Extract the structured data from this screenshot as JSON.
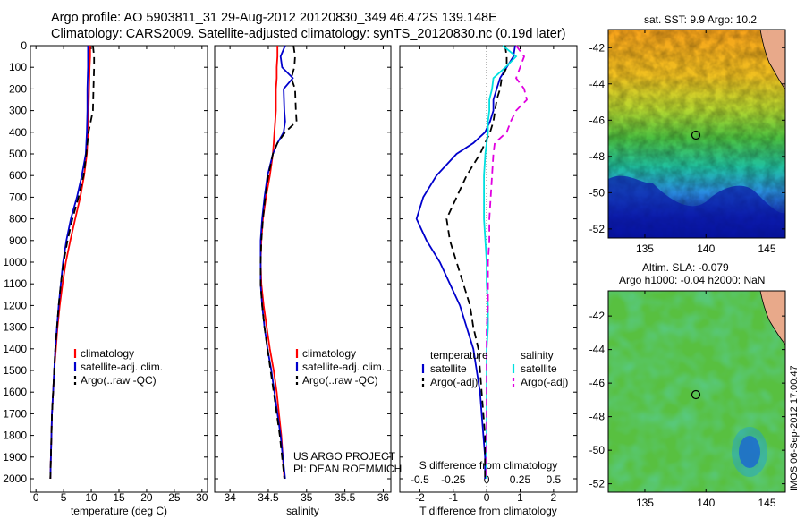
{
  "title": {
    "line1": "Argo profile: AO 5903811_31 29-Aug-2012 20120830_349 46.472S 139.148E",
    "line2": "Climatology: CARS2009. Satellite-adjusted climatology: synTS_20120830.nc (0.19d later)"
  },
  "credit": {
    "line1": "US ARGO PROJECT",
    "line2": "PI: DEAN ROEMMICH"
  },
  "side_stamp": "IMOS 06-Sep-2012 17:00:47",
  "colors": {
    "red": "#ff0000",
    "blue": "#0000cc",
    "black": "#000000",
    "cyan": "#00e0e0",
    "magenta": "#e000e0"
  },
  "chart_data": [
    {
      "type": "line",
      "xlabel": "temperature (deg C)",
      "xlim": [
        -1,
        31
      ],
      "ylim": [
        2050,
        0
      ],
      "xticks": [
        "0",
        "5",
        "10",
        "15",
        "20",
        "25",
        "30"
      ],
      "yticks": [
        "0",
        "100",
        "200",
        "300",
        "400",
        "500",
        "600",
        "700",
        "800",
        "900",
        "1000",
        "1100",
        "1200",
        "1300",
        "1400",
        "1500",
        "1600",
        "1700",
        "1800",
        "1900",
        "2000"
      ],
      "depth": [
        0,
        50,
        100,
        200,
        300,
        400,
        450,
        500,
        600,
        700,
        800,
        900,
        1000,
        1100,
        1200,
        1300,
        1400,
        1500,
        1600,
        1700,
        1800,
        1900,
        2000
      ],
      "series": [
        {
          "name": "climatology",
          "color": "red",
          "style": "solid",
          "values": [
            9.8,
            9.8,
            9.7,
            9.6,
            9.5,
            9.4,
            9.3,
            9.2,
            8.7,
            8.0,
            7.1,
            6.2,
            5.4,
            4.8,
            4.3,
            3.9,
            3.6,
            3.3,
            3.1,
            2.9,
            2.8,
            2.7,
            2.6
          ]
        },
        {
          "name": "satellite-adj. clim.",
          "color": "blue",
          "style": "solid",
          "values": [
            9.4,
            9.4,
            9.4,
            9.3,
            9.3,
            9.2,
            9.1,
            9.0,
            8.3,
            7.4,
            6.3,
            5.5,
            4.9,
            4.5,
            4.1,
            3.8,
            3.5,
            3.3,
            3.1,
            2.9,
            2.8,
            2.7,
            2.6
          ]
        },
        {
          "name": "Argo(..raw -QC)",
          "color": "black",
          "style": "dashed",
          "values": [
            10.3,
            10.5,
            10.5,
            10.4,
            10.3,
            9.5,
            9.3,
            9.1,
            8.6,
            7.7,
            6.6,
            5.7,
            5.0,
            4.5,
            4.1,
            3.8,
            3.5,
            3.3,
            3.1,
            2.9,
            2.8,
            2.7,
            2.6
          ]
        }
      ]
    },
    {
      "type": "line",
      "xlabel": "salinity",
      "xlim": [
        33.8,
        36.1
      ],
      "ylim": [
        2050,
        0
      ],
      "xticks": [
        "34",
        "34.5",
        "35",
        "35.5",
        "36"
      ],
      "depth": [
        0,
        50,
        100,
        150,
        200,
        300,
        350,
        400,
        450,
        500,
        600,
        700,
        800,
        900,
        1000,
        1100,
        1200,
        1300,
        1400,
        1500,
        1600,
        1700,
        1800,
        1900,
        2000
      ],
      "series": [
        {
          "name": "climatology",
          "color": "red",
          "style": "solid",
          "values": [
            34.62,
            34.62,
            34.61,
            34.61,
            34.6,
            34.6,
            34.59,
            34.58,
            34.57,
            34.56,
            34.52,
            34.47,
            34.43,
            34.41,
            34.4,
            34.41,
            34.44,
            34.48,
            34.52,
            34.57,
            34.61,
            34.64,
            34.67,
            34.69,
            34.71
          ]
        },
        {
          "name": "satellite-adj. clim.",
          "color": "blue",
          "style": "solid",
          "values": [
            34.72,
            34.66,
            34.68,
            34.82,
            34.7,
            34.71,
            34.72,
            34.7,
            34.62,
            34.56,
            34.49,
            34.45,
            34.42,
            34.4,
            34.4,
            34.4,
            34.42,
            34.45,
            34.49,
            34.54,
            34.58,
            34.62,
            34.66,
            34.69,
            34.72
          ]
        },
        {
          "name": "Argo(..raw -QC)",
          "color": "black",
          "style": "dashed",
          "values": [
            34.83,
            34.85,
            34.84,
            34.8,
            34.85,
            34.86,
            34.87,
            34.72,
            34.62,
            34.56,
            34.5,
            34.46,
            34.43,
            34.41,
            34.4,
            34.4,
            34.42,
            34.45,
            34.49,
            34.53,
            34.57,
            34.61,
            34.65,
            34.68,
            34.71
          ]
        }
      ]
    },
    {
      "type": "line",
      "xlabel": "T difference from climatology",
      "xlim": [
        -2.6,
        2.7
      ],
      "ylim": [
        2050,
        0
      ],
      "xticks": [
        "-2",
        "-1",
        "0",
        "1",
        "2"
      ],
      "top_axis_label": "S difference from climatology",
      "top_ticks": [
        "-0.5",
        "-0.25",
        "0",
        "0.25",
        "0.5"
      ],
      "legend_headers": [
        "temperature",
        "salinity"
      ],
      "depth": [
        0,
        50,
        100,
        150,
        200,
        250,
        300,
        350,
        400,
        450,
        500,
        600,
        700,
        800,
        900,
        1000,
        1100,
        1200,
        1300,
        1400,
        1500,
        1600,
        1700,
        1800,
        1900,
        2000
      ],
      "series": [
        {
          "name": "satellite",
          "group": "temperature",
          "color": "blue",
          "style": "solid",
          "values": [
            0.85,
            0.8,
            0.6,
            0.4,
            0.3,
            0.2,
            0.2,
            0.1,
            -0.05,
            -0.4,
            -0.9,
            -1.5,
            -1.9,
            -2.1,
            -1.8,
            -1.4,
            -1.1,
            -0.8,
            -0.6,
            -0.4,
            -0.3,
            -0.2,
            -0.15,
            -0.1,
            -0.05,
            -0.05
          ]
        },
        {
          "name": "Argo(-adj)",
          "group": "temperature",
          "color": "black",
          "style": "dashed",
          "values": [
            0.55,
            0.6,
            0.6,
            0.45,
            0.4,
            0.3,
            0.25,
            0.2,
            0.1,
            -0.05,
            -0.2,
            -0.6,
            -0.9,
            -1.2,
            -1.1,
            -0.9,
            -0.7,
            -0.5,
            -0.4,
            -0.25,
            -0.2,
            -0.15,
            -0.1,
            -0.05,
            -0.05,
            -0.05
          ]
        },
        {
          "name": "satellite",
          "group": "salinity",
          "color": "cyan",
          "style": "solid",
          "values": [
            0.12,
            0.22,
            0.14,
            0.05,
            0.04,
            0.02,
            0.02,
            0.01,
            0.01,
            0.0,
            -0.01,
            -0.02,
            -0.02,
            -0.02,
            -0.01,
            0.0,
            0.0,
            0.01,
            0.01,
            0.0,
            0.0,
            0.0,
            0.0,
            0.0,
            0.0,
            0.0
          ]
        },
        {
          "name": "Argo(-adj)",
          "group": "salinity",
          "color": "magenta",
          "style": "dashed",
          "values": [
            0.22,
            0.28,
            0.25,
            0.22,
            0.28,
            0.3,
            0.22,
            0.18,
            0.15,
            0.06,
            0.05,
            0.04,
            0.03,
            0.02,
            0.02,
            0.01,
            0.01,
            0.01,
            0.0,
            0.0,
            0.0,
            0.0,
            0.0,
            0.0,
            0.0,
            0.0
          ]
        }
      ]
    },
    {
      "type": "heatmap",
      "title": "sat. SST: 9.9 Argo: 10.2",
      "xlim": [
        132,
        146.5
      ],
      "ylim": [
        -52.5,
        -41
      ],
      "xticks": [
        "135",
        "140",
        "145"
      ],
      "yticks": [
        "-42",
        "-44",
        "-46",
        "-48",
        "-50",
        "-52"
      ],
      "marker": {
        "lon": 139.148,
        "lat": -46.472
      }
    },
    {
      "type": "heatmap",
      "title_line1": "Altim. SLA: -0.079",
      "title_line2": "Argo h1000: -0.04 h2000: NaN",
      "xlim": [
        132,
        146.5
      ],
      "ylim": [
        -52.5,
        -40.5
      ],
      "xticks": [
        "135",
        "140",
        "145"
      ],
      "yticks": [
        "-42",
        "-44",
        "-46",
        "-48",
        "-50",
        "-52"
      ],
      "marker": {
        "lon": 139.148,
        "lat": -46.472
      }
    }
  ]
}
